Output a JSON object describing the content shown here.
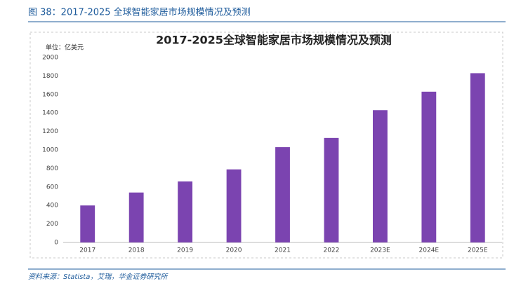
{
  "figure_caption": "图 38：2017-2025 全球智能家居市场规模情况及预测",
  "chart_data": {
    "type": "bar",
    "title": "2017-2025全球智能家居市场规模情况及预测",
    "unit_label": "单位：亿美元",
    "categories": [
      "2017",
      "2018",
      "2019",
      "2020",
      "2021",
      "2022",
      "2023E",
      "2024E",
      "2025E"
    ],
    "values": [
      400,
      540,
      660,
      790,
      1030,
      1130,
      1430,
      1630,
      1830
    ],
    "color": "#7b44b0",
    "ylim": [
      0,
      2000
    ],
    "yticks": [
      0,
      200,
      400,
      600,
      800,
      1000,
      1200,
      1400,
      1600,
      1800,
      2000
    ],
    "grid": false
  },
  "source": "资料来源：Statista，艾瑞，华金证券研究所"
}
